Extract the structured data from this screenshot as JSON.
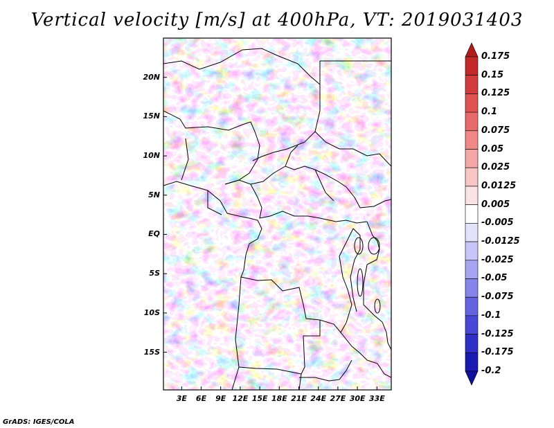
{
  "title": "Vertical velocity [m/s] at 400hPa, VT: 2019031403",
  "credit": "GrADS: IGES/COLA",
  "map": {
    "lat_ticks": [
      {
        "label": "20N",
        "value": 20
      },
      {
        "label": "15N",
        "value": 15
      },
      {
        "label": "10N",
        "value": 10
      },
      {
        "label": "5N",
        "value": 5
      },
      {
        "label": "EQ",
        "value": 0
      },
      {
        "label": "5S",
        "value": -5
      },
      {
        "label": "10S",
        "value": -10
      },
      {
        "label": "15S",
        "value": -15
      }
    ],
    "lon_ticks": [
      {
        "label": "3E",
        "value": 3
      },
      {
        "label": "6E",
        "value": 6
      },
      {
        "label": "9E",
        "value": 9
      },
      {
        "label": "12E",
        "value": 12
      },
      {
        "label": "15E",
        "value": 15
      },
      {
        "label": "18E",
        "value": 18
      },
      {
        "label": "21E",
        "value": 21
      },
      {
        "label": "24E",
        "value": 24
      },
      {
        "label": "27E",
        "value": 27
      },
      {
        "label": "30E",
        "value": 30
      },
      {
        "label": "33E",
        "value": 33
      }
    ],
    "lon_range": [
      0.2,
      35.2
    ],
    "lat_range": [
      -19.8,
      25
    ]
  },
  "colorbar": {
    "levels": [
      "0.175",
      "0.15",
      "0.125",
      "0.1",
      "0.075",
      "0.05",
      "0.025",
      "0.0125",
      "0.005",
      "-0.005",
      "-0.0125",
      "-0.025",
      "-0.05",
      "-0.075",
      "-0.1",
      "-0.125",
      "-0.175",
      "-0.2"
    ],
    "colors": [
      "#b01c1c",
      "#c22a2a",
      "#d23c3c",
      "#df5252",
      "#e96a6a",
      "#f08888",
      "#f5a7a7",
      "#f9c6c6",
      "#fce3e3",
      "#ffffff",
      "#e2e2fb",
      "#c5c5f7",
      "#a5a5f1",
      "#8585eb",
      "#6464e2",
      "#4848d6",
      "#2f2fc6",
      "#1a1ab0",
      "#10109a"
    ]
  }
}
